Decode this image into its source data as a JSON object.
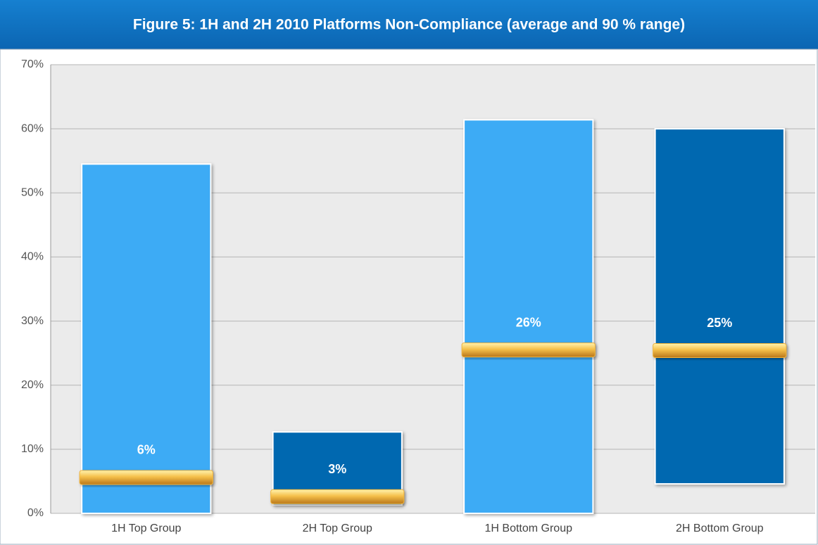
{
  "chart_data": {
    "type": "floating-bar",
    "title": "Figure 5: 1H and 2H 2010 Platforms Non-Compliance (average and 90 % range)",
    "categories": [
      "1H Top Group",
      "2H Top Group",
      "1H Bottom Group",
      "2H Bottom Group"
    ],
    "lows": [
      0,
      1.3,
      0,
      4.6
    ],
    "highs": [
      54.5,
      12.7,
      61.4,
      60
    ],
    "averages": [
      5.6,
      2.6,
      25.5,
      25.4
    ],
    "value_labels": [
      "6%",
      "3%",
      "26%",
      "25%"
    ],
    "colors": [
      "#3eabf5",
      "#0568b0",
      "#3eabf5",
      "#0568b0"
    ],
    "marker_color": "#f2b43a",
    "ylim": [
      0,
      70
    ],
    "yticks": [
      {
        "value": 0,
        "label": "0%"
      },
      {
        "value": 10,
        "label": "10%"
      },
      {
        "value": 20,
        "label": "20%"
      },
      {
        "value": 30,
        "label": "30%"
      },
      {
        "value": 40,
        "label": "40%"
      },
      {
        "value": 50,
        "label": "50%"
      },
      {
        "value": 60,
        "label": "60%"
      },
      {
        "value": 70,
        "label": "70%"
      }
    ],
    "grid": true
  }
}
